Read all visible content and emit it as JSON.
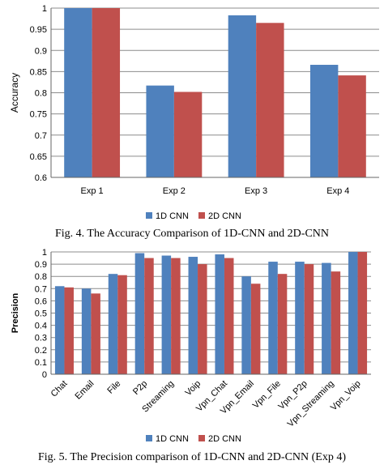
{
  "chart_data": [
    {
      "type": "bar",
      "title": "",
      "xlabel": "",
      "ylabel": "Accuracy",
      "ylim": [
        0.6,
        1.0
      ],
      "yticks": [
        "0.6",
        "0.65",
        "0.7",
        "0.75",
        "0.8",
        "0.85",
        "0.9",
        "0.95",
        "1"
      ],
      "categories": [
        "Exp 1",
        "Exp 2",
        "Exp 3",
        "Exp 4"
      ],
      "series": [
        {
          "name": "1D CNN",
          "color": "#4f81bd",
          "values": [
            1.0,
            0.817,
            0.983,
            0.866
          ]
        },
        {
          "name": "2D CNN",
          "color": "#c0504d",
          "values": [
            1.0,
            0.802,
            0.965,
            0.841
          ]
        }
      ],
      "grid": true,
      "legend_position": "bottom"
    },
    {
      "type": "bar",
      "title": "",
      "xlabel": "",
      "ylabel": "Precision",
      "ylim": [
        0,
        1.0
      ],
      "yticks": [
        "0",
        "0.1",
        "0.2",
        "0.3",
        "0.4",
        "0.5",
        "0.6",
        "0.7",
        "0.8",
        "0.9",
        "1"
      ],
      "categories": [
        "Chat",
        "Email",
        "File",
        "P2p",
        "Streaming",
        "Voip",
        "Vpn_Chat",
        "Vpn_Email",
        "Vpn_File",
        "Vpn_P2p",
        "Vpn_Streaming",
        "Vpn_Voip"
      ],
      "series": [
        {
          "name": "1D CNN",
          "color": "#4f81bd",
          "values": [
            0.72,
            0.7,
            0.82,
            0.99,
            0.97,
            0.96,
            0.98,
            0.8,
            0.92,
            0.92,
            0.91,
            1.0
          ]
        },
        {
          "name": "2D CNN",
          "color": "#c0504d",
          "values": [
            0.71,
            0.66,
            0.81,
            0.95,
            0.95,
            0.9,
            0.95,
            0.74,
            0.82,
            0.9,
            0.84,
            1.0
          ]
        }
      ],
      "grid": true,
      "legend_position": "bottom"
    }
  ],
  "captions": {
    "fig4": "Fig. 4. The Accuracy Comparison of 1D-CNN and 2D-CNN",
    "fig5": "Fig. 5. The Precision comparison of 1D-CNN and 2D-CNN (Exp 4)"
  }
}
